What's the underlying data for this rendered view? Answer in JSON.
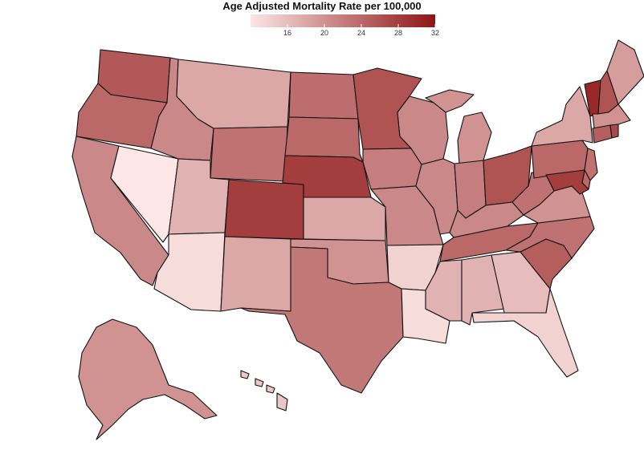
{
  "legend": {
    "title": "Age Adjusted Mortality Rate per 100,000",
    "min": 12,
    "max": 32,
    "ticks": [
      "16",
      "20",
      "24",
      "28",
      "32"
    ],
    "tick_values": [
      16,
      20,
      24,
      28,
      32
    ],
    "color_low": "#fde6e6",
    "color_high": "#8e1414"
  },
  "map_data": {
    "type": "choropleth",
    "region": "United States",
    "states": [
      {
        "id": "WA",
        "value": 25.5
      },
      {
        "id": "OR",
        "value": 24
      },
      {
        "id": "CA",
        "value": 21
      },
      {
        "id": "NV",
        "value": 12
      },
      {
        "id": "ID",
        "value": 21
      },
      {
        "id": "MT",
        "value": 18
      },
      {
        "id": "WY",
        "value": 23
      },
      {
        "id": "UT",
        "value": 17
      },
      {
        "id": "AZ",
        "value": 13
      },
      {
        "id": "CO",
        "value": 28
      },
      {
        "id": "NM",
        "value": 18
      },
      {
        "id": "ND",
        "value": 23.5
      },
      {
        "id": "SD",
        "value": 24
      },
      {
        "id": "NE",
        "value": 28
      },
      {
        "id": "KS",
        "value": 18
      },
      {
        "id": "OK",
        "value": 20
      },
      {
        "id": "TX",
        "value": 22.5
      },
      {
        "id": "MN",
        "value": 26
      },
      {
        "id": "IA",
        "value": 22
      },
      {
        "id": "MO",
        "value": 21
      },
      {
        "id": "AR",
        "value": 14
      },
      {
        "id": "LA",
        "value": 13
      },
      {
        "id": "WI",
        "value": 21
      },
      {
        "id": "IL",
        "value": 21
      },
      {
        "id": "MI",
        "value": 20
      },
      {
        "id": "IN",
        "value": 22
      },
      {
        "id": "OH",
        "value": 26
      },
      {
        "id": "KY",
        "value": 21
      },
      {
        "id": "TN",
        "value": 24
      },
      {
        "id": "MS",
        "value": 17
      },
      {
        "id": "AL",
        "value": 17
      },
      {
        "id": "GA",
        "value": 16
      },
      {
        "id": "FL",
        "value": 14
      },
      {
        "id": "SC",
        "value": 25
      },
      {
        "id": "NC",
        "value": 23
      },
      {
        "id": "VA",
        "value": 20
      },
      {
        "id": "WV",
        "value": 23
      },
      {
        "id": "PA",
        "value": 24
      },
      {
        "id": "NY",
        "value": 18
      },
      {
        "id": "VT",
        "value": 30
      },
      {
        "id": "NH",
        "value": 26
      },
      {
        "id": "ME",
        "value": 19
      },
      {
        "id": "MA",
        "value": 20
      },
      {
        "id": "RI",
        "value": 27
      },
      {
        "id": "CT",
        "value": 25
      },
      {
        "id": "NJ",
        "value": 23
      },
      {
        "id": "DE",
        "value": 24
      },
      {
        "id": "MD",
        "value": 28
      },
      {
        "id": "AK",
        "value": 20
      },
      {
        "id": "HI",
        "value": 15
      }
    ]
  }
}
